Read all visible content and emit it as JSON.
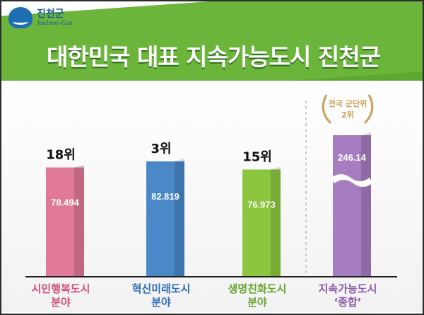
{
  "header": {
    "logo_name": "진천군",
    "logo_english": "Jincheon-Gun",
    "title_main": "대한민국 대표 지속가능도시",
    "title_emphasis": "진천군"
  },
  "chart_data": {
    "type": "bar",
    "categories": [
      "시민행복도시\n분야",
      "혁신미래도시\n분야",
      "생명친화도시\n분야",
      "지속가능도시\n‘종합’"
    ],
    "category_lines": [
      [
        "시민행복도시",
        "분야"
      ],
      [
        "혁신미래도시",
        "분야"
      ],
      [
        "생명친화도시",
        "분야"
      ],
      [
        "지속가능도시",
        "‘종합’"
      ]
    ],
    "values": [
      78.494,
      82.819,
      76.973,
      246.14
    ],
    "value_labels": [
      "78.494",
      "82.819",
      "76.973",
      "246.14"
    ],
    "rank_labels": [
      "18위",
      "3위",
      "15위",
      ""
    ],
    "colors": [
      "#e07a98",
      "#4a88c8",
      "#8cc63f",
      "#a77dc1"
    ],
    "label_colors": [
      "#d14f78",
      "#2f6fb5",
      "#6aa630",
      "#8a5aa8"
    ],
    "axis_break_on": [
      3
    ],
    "badge": {
      "line1": "전국 군단위",
      "line2": "2위"
    },
    "ylim": [
      0,
      100
    ]
  }
}
